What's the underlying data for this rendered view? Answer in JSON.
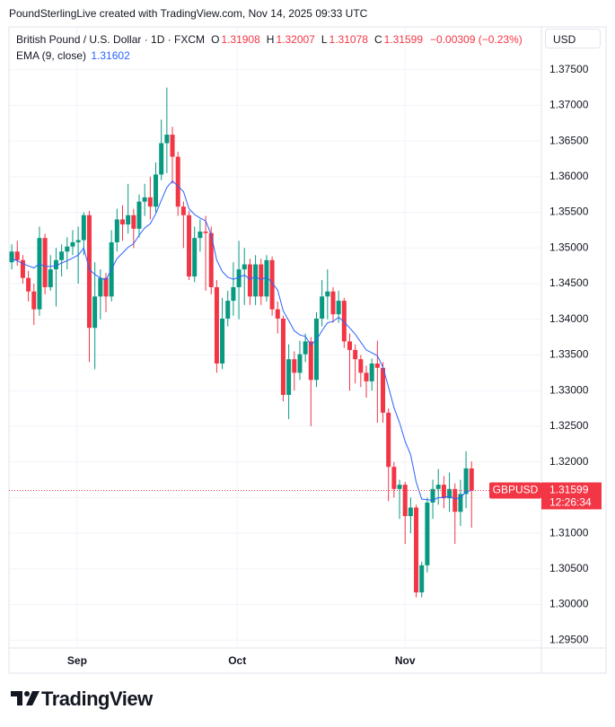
{
  "credit": "PoundSterlingLive created with TradingView.com, Nov 14, 2025 09:33 UTC",
  "brand": "TradingView",
  "currency": "USD",
  "chart_data": {
    "type": "candlestick",
    "symbol": "British Pound / U.S. Dollar · 1D · FXCM",
    "legend_ohlc": [
      {
        "key": "O",
        "value": "1.31908"
      },
      {
        "key": "H",
        "value": "1.32007"
      },
      {
        "key": "L",
        "value": "1.31078"
      },
      {
        "key": "C",
        "value": "1.31599"
      }
    ],
    "change": "−0.00309 (−0.23%)",
    "ticker": "GBPUSD",
    "last_price": "1.31599",
    "countdown": "12:26:34",
    "up_color": "#089981",
    "down_color": "#f23645",
    "open": [
      1.348,
      1.3495,
      1.3483,
      1.3458,
      1.3439,
      1.3414,
      1.3514,
      1.3445,
      1.347,
      1.3483,
      1.3495,
      1.3502,
      1.3508,
      1.3511,
      1.3546,
      1.3388,
      1.3432,
      1.3458,
      1.3432,
      1.3508,
      1.354,
      1.3533,
      1.3546,
      1.3527,
      1.3565,
      1.3571,
      1.3558,
      1.3603,
      1.3647,
      1.3659,
      1.3628,
      1.3558,
      1.3546,
      1.346,
      1.3514,
      1.3523,
      1.3521,
      1.3445,
      1.3338,
      1.3401,
      1.3426,
      1.3445,
      1.347,
      1.3477,
      1.3432,
      1.3477,
      1.3432,
      1.3483,
      1.3414,
      1.3401,
      1.3294,
      1.3344,
      1.3325,
      1.3351,
      1.3369,
      1.3315,
      1.3401,
      1.3432,
      1.3439,
      1.3407,
      1.3426,
      1.3369,
      1.3357,
      1.3344,
      1.3325,
      1.3313,
      1.3338,
      1.3332,
      1.3269,
      1.3193,
      1.3162,
      1.3168,
      1.3124,
      1.3136,
      1.3017,
      1.3055,
      1.3143,
      1.3162,
      1.3168,
      1.3149,
      1.3162,
      1.313,
      1.3155,
      1.31908
    ],
    "high": [
      1.3505,
      1.351,
      1.349,
      1.3468,
      1.345,
      1.353,
      1.352,
      1.349,
      1.35,
      1.3505,
      1.3515,
      1.3525,
      1.353,
      1.355,
      1.3552,
      1.348,
      1.347,
      1.3465,
      1.3525,
      1.3555,
      1.356,
      1.359,
      1.3555,
      1.3575,
      1.359,
      1.36,
      1.362,
      1.368,
      1.3725,
      1.367,
      1.3635,
      1.3565,
      1.3552,
      1.353,
      1.354,
      1.3545,
      1.353,
      1.3455,
      1.343,
      1.344,
      1.348,
      1.351,
      1.35,
      1.3485,
      1.349,
      1.3485,
      1.349,
      1.3488,
      1.3425,
      1.3405,
      1.3365,
      1.3355,
      1.337,
      1.338,
      1.3375,
      1.341,
      1.3455,
      1.347,
      1.3445,
      1.344,
      1.343,
      1.338,
      1.3365,
      1.335,
      1.3335,
      1.3345,
      1.337,
      1.334,
      1.3275,
      1.32,
      1.3175,
      1.3172,
      1.315,
      1.314,
      1.306,
      1.315,
      1.3175,
      1.319,
      1.318,
      1.3185,
      1.317,
      1.3175,
      1.3215,
      1.32007
    ],
    "low": [
      1.347,
      1.3475,
      1.345,
      1.3425,
      1.3392,
      1.3405,
      1.3435,
      1.344,
      1.3418,
      1.346,
      1.347,
      1.349,
      1.345,
      1.349,
      1.334,
      1.333,
      1.34,
      1.341,
      1.3425,
      1.3495,
      1.351,
      1.352,
      1.35,
      1.3515,
      1.3545,
      1.354,
      1.355,
      1.3595,
      1.3605,
      1.359,
      1.3545,
      1.35,
      1.3455,
      1.3452,
      1.3495,
      1.344,
      1.3435,
      1.3325,
      1.333,
      1.339,
      1.3405,
      1.34,
      1.342,
      1.342,
      1.342,
      1.342,
      1.3425,
      1.3405,
      1.338,
      1.3285,
      1.326,
      1.33,
      1.3315,
      1.334,
      1.325,
      1.3305,
      1.339,
      1.34,
      1.3395,
      1.3395,
      1.336,
      1.33,
      1.331,
      1.3305,
      1.329,
      1.33,
      1.3255,
      1.3255,
      1.3145,
      1.315,
      1.312,
      1.3085,
      1.31,
      1.301,
      1.301,
      1.3045,
      1.312,
      1.314,
      1.3135,
      1.313,
      1.3085,
      1.311,
      1.3135,
      1.31078
    ],
    "close": [
      1.3495,
      1.3483,
      1.3458,
      1.3439,
      1.3414,
      1.3514,
      1.3445,
      1.347,
      1.3483,
      1.3495,
      1.3502,
      1.3508,
      1.3511,
      1.3546,
      1.3388,
      1.3432,
      1.3458,
      1.3432,
      1.3508,
      1.354,
      1.3533,
      1.3546,
      1.3527,
      1.3565,
      1.3571,
      1.3558,
      1.3603,
      1.3647,
      1.3659,
      1.3628,
      1.3558,
      1.3546,
      1.346,
      1.3514,
      1.3523,
      1.3521,
      1.3445,
      1.3338,
      1.3401,
      1.3426,
      1.3445,
      1.347,
      1.3477,
      1.3432,
      1.3477,
      1.3432,
      1.3483,
      1.3414,
      1.3401,
      1.3294,
      1.3344,
      1.3325,
      1.3351,
      1.3369,
      1.3315,
      1.3401,
      1.3432,
      1.3439,
      1.3407,
      1.3426,
      1.3369,
      1.3357,
      1.3344,
      1.3325,
      1.3313,
      1.3338,
      1.3332,
      1.3269,
      1.3193,
      1.3162,
      1.3168,
      1.3124,
      1.3136,
      1.3017,
      1.3055,
      1.3143,
      1.3162,
      1.3168,
      1.3149,
      1.3162,
      1.313,
      1.3155,
      1.3191,
      1.31599
    ],
    "ema": {
      "name": "EMA (9, close)",
      "value_label": "1.31602",
      "color": "#2962ff",
      "values": [
        1.3485,
        1.3482,
        1.3478,
        1.3475,
        1.3472,
        1.3478,
        1.3474,
        1.3474,
        1.3475,
        1.3479,
        1.3482,
        1.3486,
        1.349,
        1.35,
        1.347,
        1.3463,
        1.3458,
        1.3455,
        1.347,
        1.3485,
        1.3493,
        1.3501,
        1.3506,
        1.3518,
        1.3528,
        1.3534,
        1.3548,
        1.3567,
        1.3585,
        1.3594,
        1.3587,
        1.3579,
        1.3555,
        1.3547,
        1.3542,
        1.3538,
        1.3519,
        1.3483,
        1.3467,
        1.3459,
        1.3456,
        1.3459,
        1.3462,
        1.3456,
        1.346,
        1.3455,
        1.346,
        1.3451,
        1.3441,
        1.3412,
        1.3398,
        1.3384,
        1.3378,
        1.3376,
        1.3364,
        1.3371,
        1.3384,
        1.3395,
        1.3397,
        1.3403,
        1.3396,
        1.3388,
        1.3379,
        1.3368,
        1.3357,
        1.3353,
        1.3349,
        1.3333,
        1.3305,
        1.3276,
        1.3255,
        1.3229,
        1.321,
        1.3172,
        1.3148,
        1.3147,
        1.3146,
        1.315,
        1.315,
        1.3152,
        1.3148,
        1.315,
        1.3158,
        1.31602
      ]
    },
    "xlim": [
      -0.5,
      95.6
    ],
    "xticks": [
      {
        "value": 11.8,
        "label": "Sep"
      },
      {
        "value": 40.7,
        "label": "Oct"
      },
      {
        "value": 71,
        "label": "Nov"
      }
    ],
    "ylim": [
      1.2939,
      1.381
    ],
    "yticks": [
      {
        "value": 1.295,
        "label": "1.29500"
      },
      {
        "value": 1.3,
        "label": "1.30000"
      },
      {
        "value": 1.305,
        "label": "1.30500"
      },
      {
        "value": 1.31,
        "label": "1.31000"
      },
      {
        "value": 1.315,
        "label": "1.31500"
      },
      {
        "value": 1.32,
        "label": "1.32000"
      },
      {
        "value": 1.325,
        "label": "1.32500"
      },
      {
        "value": 1.33,
        "label": "1.33000"
      },
      {
        "value": 1.335,
        "label": "1.33500"
      },
      {
        "value": 1.34,
        "label": "1.34000"
      },
      {
        "value": 1.345,
        "label": "1.34500"
      },
      {
        "value": 1.35,
        "label": "1.35000"
      },
      {
        "value": 1.355,
        "label": "1.35500"
      },
      {
        "value": 1.36,
        "label": "1.36000"
      },
      {
        "value": 1.365,
        "label": "1.36500"
      },
      {
        "value": 1.37,
        "label": "1.37000"
      },
      {
        "value": 1.375,
        "label": "1.37500"
      }
    ],
    "grid": true
  }
}
